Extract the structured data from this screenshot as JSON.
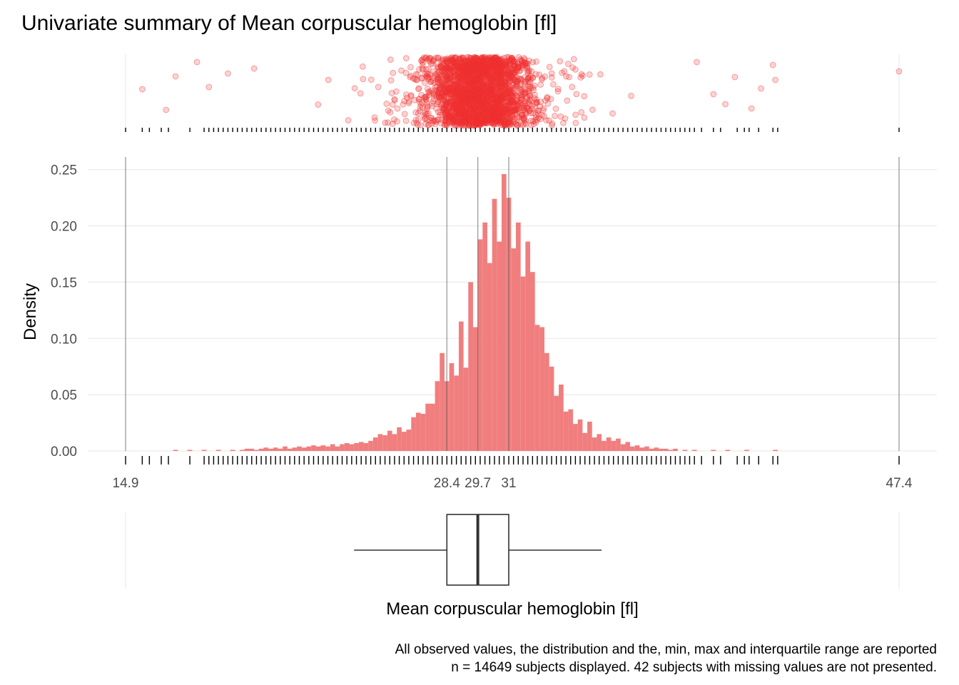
{
  "chart_data": {
    "type": "histogram",
    "title": "Univariate summary of Mean corpuscular hemoglobin [fl]",
    "xlabel": "Mean corpuscular hemoglobin [fl]",
    "ylabel": "Density",
    "xlim": [
      14.9,
      47.4
    ],
    "ylim": [
      0,
      0.26
    ],
    "y_ticks": [
      "0.00",
      "0.05",
      "0.10",
      "0.15",
      "0.20",
      "0.25"
    ],
    "x_ticks": [
      "14.9",
      "28.4",
      "29.7",
      "31",
      "47.4"
    ],
    "summary": {
      "min": 14.9,
      "q1": 28.4,
      "median": 29.7,
      "q3": 31,
      "max": 47.4,
      "whisker_low": 24.5,
      "whisker_high": 34.9
    },
    "bar_color": "#f17e7e",
    "point_color": "#f03030",
    "bin_width": 0.2,
    "bins": [
      {
        "x": 17.0,
        "y": 0.001
      },
      {
        "x": 17.6,
        "y": 0.001
      },
      {
        "x": 18.2,
        "y": 0.001
      },
      {
        "x": 18.8,
        "y": 0.001
      },
      {
        "x": 19.4,
        "y": 0.001
      },
      {
        "x": 19.8,
        "y": 0.001
      },
      {
        "x": 20.0,
        "y": 0.002
      },
      {
        "x": 20.2,
        "y": 0.002
      },
      {
        "x": 20.4,
        "y": 0.001
      },
      {
        "x": 20.6,
        "y": 0.002
      },
      {
        "x": 20.8,
        "y": 0.003
      },
      {
        "x": 21.0,
        "y": 0.002
      },
      {
        "x": 21.2,
        "y": 0.003
      },
      {
        "x": 21.4,
        "y": 0.002
      },
      {
        "x": 21.6,
        "y": 0.004
      },
      {
        "x": 21.8,
        "y": 0.002
      },
      {
        "x": 22.0,
        "y": 0.003
      },
      {
        "x": 22.2,
        "y": 0.004
      },
      {
        "x": 22.4,
        "y": 0.003
      },
      {
        "x": 22.6,
        "y": 0.004
      },
      {
        "x": 22.8,
        "y": 0.005
      },
      {
        "x": 23.0,
        "y": 0.004
      },
      {
        "x": 23.2,
        "y": 0.005
      },
      {
        "x": 23.4,
        "y": 0.004
      },
      {
        "x": 23.6,
        "y": 0.006
      },
      {
        "x": 23.8,
        "y": 0.004
      },
      {
        "x": 24.0,
        "y": 0.006
      },
      {
        "x": 24.2,
        "y": 0.007
      },
      {
        "x": 24.4,
        "y": 0.006
      },
      {
        "x": 24.6,
        "y": 0.007
      },
      {
        "x": 24.8,
        "y": 0.008
      },
      {
        "x": 25.0,
        "y": 0.007
      },
      {
        "x": 25.2,
        "y": 0.009
      },
      {
        "x": 25.4,
        "y": 0.012
      },
      {
        "x": 25.6,
        "y": 0.015
      },
      {
        "x": 25.8,
        "y": 0.014
      },
      {
        "x": 26.0,
        "y": 0.018
      },
      {
        "x": 26.2,
        "y": 0.015
      },
      {
        "x": 26.4,
        "y": 0.021
      },
      {
        "x": 26.6,
        "y": 0.017
      },
      {
        "x": 26.8,
        "y": 0.019
      },
      {
        "x": 27.0,
        "y": 0.03
      },
      {
        "x": 27.2,
        "y": 0.034
      },
      {
        "x": 27.4,
        "y": 0.033
      },
      {
        "x": 27.6,
        "y": 0.042
      },
      {
        "x": 27.8,
        "y": 0.042
      },
      {
        "x": 28.0,
        "y": 0.062
      },
      {
        "x": 28.2,
        "y": 0.087
      },
      {
        "x": 28.4,
        "y": 0.062
      },
      {
        "x": 28.6,
        "y": 0.078
      },
      {
        "x": 28.8,
        "y": 0.067
      },
      {
        "x": 29.0,
        "y": 0.115
      },
      {
        "x": 29.2,
        "y": 0.074
      },
      {
        "x": 29.4,
        "y": 0.15
      },
      {
        "x": 29.6,
        "y": 0.11
      },
      {
        "x": 29.8,
        "y": 0.188
      },
      {
        "x": 30.0,
        "y": 0.203
      },
      {
        "x": 30.2,
        "y": 0.167
      },
      {
        "x": 30.4,
        "y": 0.224
      },
      {
        "x": 30.6,
        "y": 0.186
      },
      {
        "x": 30.8,
        "y": 0.246
      },
      {
        "x": 31.0,
        "y": 0.225
      },
      {
        "x": 31.2,
        "y": 0.18
      },
      {
        "x": 31.4,
        "y": 0.203
      },
      {
        "x": 31.6,
        "y": 0.155
      },
      {
        "x": 31.8,
        "y": 0.186
      },
      {
        "x": 32.0,
        "y": 0.159
      },
      {
        "x": 32.2,
        "y": 0.112
      },
      {
        "x": 32.4,
        "y": 0.11
      },
      {
        "x": 32.6,
        "y": 0.087
      },
      {
        "x": 32.8,
        "y": 0.075
      },
      {
        "x": 33.0,
        "y": 0.049
      },
      {
        "x": 33.2,
        "y": 0.059
      },
      {
        "x": 33.4,
        "y": 0.035
      },
      {
        "x": 33.6,
        "y": 0.037
      },
      {
        "x": 33.8,
        "y": 0.024
      },
      {
        "x": 34.0,
        "y": 0.028
      },
      {
        "x": 34.2,
        "y": 0.016
      },
      {
        "x": 34.4,
        "y": 0.026
      },
      {
        "x": 34.6,
        "y": 0.012
      },
      {
        "x": 34.8,
        "y": 0.015
      },
      {
        "x": 35.0,
        "y": 0.009
      },
      {
        "x": 35.2,
        "y": 0.012
      },
      {
        "x": 35.4,
        "y": 0.009
      },
      {
        "x": 35.6,
        "y": 0.011
      },
      {
        "x": 35.8,
        "y": 0.006
      },
      {
        "x": 36.0,
        "y": 0.008
      },
      {
        "x": 36.2,
        "y": 0.004
      },
      {
        "x": 36.4,
        "y": 0.005
      },
      {
        "x": 36.6,
        "y": 0.003
      },
      {
        "x": 36.8,
        "y": 0.004
      },
      {
        "x": 37.0,
        "y": 0.002
      },
      {
        "x": 37.2,
        "y": 0.003
      },
      {
        "x": 37.4,
        "y": 0.002
      },
      {
        "x": 37.6,
        "y": 0.002
      },
      {
        "x": 37.8,
        "y": 0.001
      },
      {
        "x": 38.0,
        "y": 0.002
      },
      {
        "x": 38.4,
        "y": 0.001
      },
      {
        "x": 38.8,
        "y": 0.001
      },
      {
        "x": 39.6,
        "y": 0.001
      },
      {
        "x": 40.2,
        "y": 0.001
      },
      {
        "x": 41.0,
        "y": 0.001
      },
      {
        "x": 42.2,
        "y": 0.001
      }
    ],
    "rug_values": [
      14.9,
      15.6,
      15.9,
      16.4,
      16.7,
      17.6,
      18.2,
      18.4,
      18.6,
      18.8,
      19.0,
      19.2,
      19.4,
      19.6,
      19.8,
      20.0,
      20.2,
      20.4,
      20.6,
      20.8,
      21.0,
      21.2,
      21.4,
      21.6,
      21.8,
      22.0,
      22.2,
      22.4,
      22.6,
      22.8,
      23.0,
      23.2,
      23.4,
      23.6,
      23.8,
      24.0,
      24.2,
      24.4,
      24.6,
      24.8,
      25.0,
      25.2,
      25.4,
      25.6,
      25.8,
      26.0,
      26.2,
      26.4,
      26.6,
      26.8,
      27.0,
      27.2,
      27.4,
      27.6,
      27.8,
      28.0,
      28.2,
      28.4,
      28.6,
      28.8,
      29.0,
      29.2,
      29.4,
      29.6,
      29.8,
      30.0,
      30.2,
      30.4,
      30.6,
      30.8,
      31.0,
      31.2,
      31.4,
      31.6,
      31.8,
      32.0,
      32.2,
      32.4,
      32.6,
      32.8,
      33.0,
      33.2,
      33.4,
      33.6,
      33.8,
      34.0,
      34.2,
      34.4,
      34.6,
      34.8,
      35.0,
      35.2,
      35.4,
      35.6,
      35.8,
      36.0,
      36.2,
      36.4,
      36.6,
      36.8,
      37.0,
      37.2,
      37.4,
      37.6,
      37.8,
      38.0,
      38.2,
      38.4,
      38.6,
      38.8,
      39.1,
      39.6,
      39.9,
      40.6,
      40.9,
      41.1,
      41.5,
      42.1,
      42.3,
      47.4
    ],
    "n_points": 14649,
    "caption_lines": [
      "All observed values, the distribution and the, min, max and interquartile range are reported",
      "n = 14649 subjects displayed. 42 subjects with missing values are not presented."
    ]
  }
}
